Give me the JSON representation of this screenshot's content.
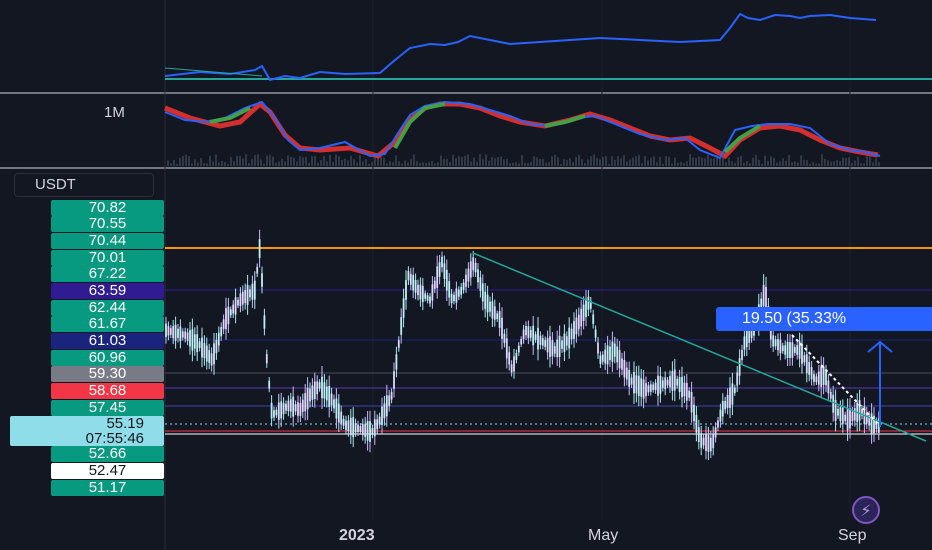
{
  "indicator_pane": {
    "label": "1M"
  },
  "scale_button": {
    "label": "USDT"
  },
  "price_axis": [
    {
      "label": "70.82",
      "color": "#089981",
      "text": "#ffffff"
    },
    {
      "label": "70.55",
      "color": "#089981",
      "text": "#ffffff"
    },
    {
      "label": "70.44",
      "color": "#089981",
      "text": "#ffffff"
    },
    {
      "label": "70.01",
      "color": "#089981",
      "text": "#ffffff"
    },
    {
      "label": "67.22",
      "color": "#089981",
      "text": "#ffffff"
    },
    {
      "label": "63.59",
      "color": "#311b92",
      "text": "#ffffff"
    },
    {
      "label": "62.44",
      "color": "#089981",
      "text": "#ffffff"
    },
    {
      "label": "61.67",
      "color": "#089981",
      "text": "#ffffff"
    },
    {
      "label": "61.03",
      "color": "#1a237e",
      "text": "#ffffff"
    },
    {
      "label": "60.96",
      "color": "#089981",
      "text": "#ffffff"
    },
    {
      "label": "59.30",
      "color": "#787b86",
      "text": "#ffffff"
    },
    {
      "label": "58.68",
      "color": "#f23645",
      "text": "#ffffff"
    },
    {
      "label": "57.45",
      "color": "#089981",
      "text": "#ffffff"
    },
    {
      "label": "52.66",
      "color": "#089981",
      "text": "#ffffff"
    },
    {
      "label": "52.47",
      "color": "#ffffff",
      "text": "#131722"
    },
    {
      "label": "51.17",
      "color": "#089981",
      "text": "#ffffff"
    }
  ],
  "current_price": {
    "price": "55.19",
    "countdown": "07:55:46"
  },
  "measure": {
    "label": "19.50 (35.33%"
  },
  "time_axis": {
    "year": "2023",
    "may": "May",
    "sep": "Sep"
  },
  "colors": {
    "background": "#131722",
    "resistance": "#ff9800",
    "trendline": "#26a69a",
    "candles": "#d7c6ff",
    "measure": "#2962ff"
  }
}
